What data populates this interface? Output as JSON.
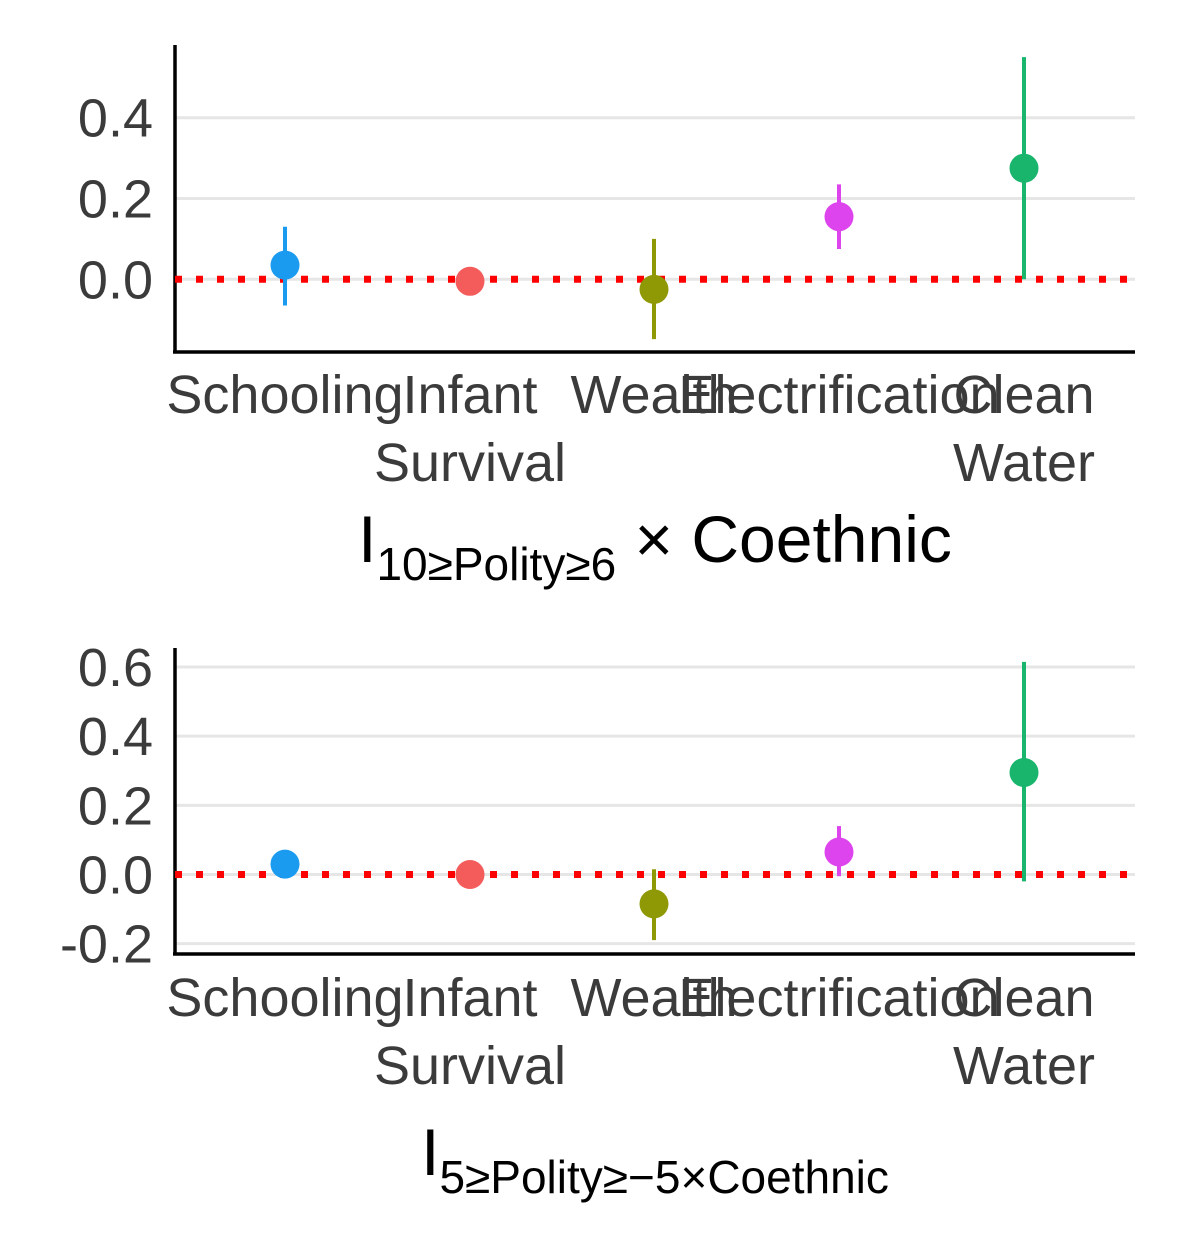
{
  "chart_data": [
    {
      "type": "scatter",
      "subtype": "point-range",
      "categories": [
        "Schooling",
        "Infant\nSurvival",
        "Wealth",
        "Electrification",
        "Clean\nWater"
      ],
      "y_ticks": [
        "0.4",
        "0.2",
        "0.0"
      ],
      "ylim": [
        -0.18,
        0.58
      ],
      "grid": true,
      "reference_line": {
        "y": 0,
        "color": "#ff0000",
        "style": "dotted"
      },
      "xlabel": {
        "main": "I",
        "subscript": "10≥Polity≥6",
        "suffix": " × Coethnic"
      },
      "series": [
        {
          "category": "Schooling",
          "estimate": 0.035,
          "lower": -0.065,
          "upper": 0.13,
          "color": "#1a9bf0"
        },
        {
          "category": "Infant\nSurvival",
          "estimate": -0.005,
          "lower": -0.005,
          "upper": -0.005,
          "color": "#f45c5c"
        },
        {
          "category": "Wealth",
          "estimate": -0.025,
          "lower": -0.148,
          "upper": 0.1,
          "color": "#8f9805"
        },
        {
          "category": "Electrification",
          "estimate": 0.155,
          "lower": 0.075,
          "upper": 0.235,
          "color": "#dd44ee"
        },
        {
          "category": "Clean\nWater",
          "estimate": 0.275,
          "lower": 0.0,
          "upper": 0.55,
          "color": "#19b56d"
        }
      ]
    },
    {
      "type": "scatter",
      "subtype": "point-range",
      "categories": [
        "Schooling",
        "Infant\nSurvival",
        "Wealth",
        "Electrification",
        "Clean\nWater"
      ],
      "y_ticks": [
        "0.6",
        "0.4",
        "0.2",
        "0.0",
        "-0.2"
      ],
      "ylim": [
        -0.23,
        0.655
      ],
      "grid": true,
      "reference_line": {
        "y": 0,
        "color": "#ff0000",
        "style": "dotted"
      },
      "xlabel": {
        "main": "I",
        "subscript": "5≥Polity≥−5×Coethnic",
        "suffix": ""
      },
      "series": [
        {
          "category": "Schooling",
          "estimate": 0.03,
          "lower": 0.03,
          "upper": 0.03,
          "color": "#1a9bf0"
        },
        {
          "category": "Infant\nSurvival",
          "estimate": 0.0,
          "lower": 0.0,
          "upper": 0.0,
          "color": "#f45c5c"
        },
        {
          "category": "Wealth",
          "estimate": -0.085,
          "lower": -0.19,
          "upper": 0.015,
          "color": "#8f9805"
        },
        {
          "category": "Electrification",
          "estimate": 0.065,
          "lower": -0.005,
          "upper": 0.14,
          "color": "#dd44ee"
        },
        {
          "category": "Clean\nWater",
          "estimate": 0.295,
          "lower": -0.02,
          "upper": 0.615,
          "color": "#19b56d"
        }
      ]
    }
  ]
}
